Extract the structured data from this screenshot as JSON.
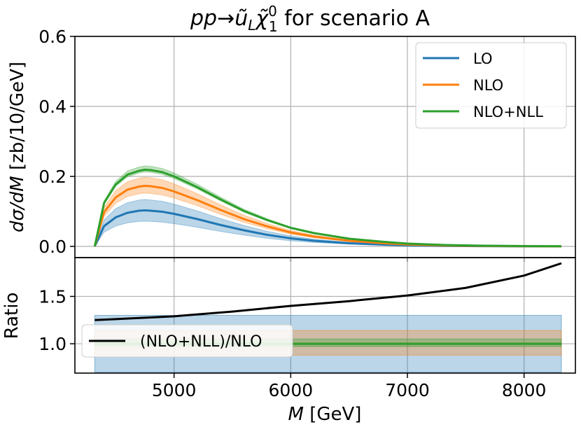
{
  "chart_data": [
    {
      "type": "line",
      "title": "pp→ũ_L χ̃₁⁰ for scenario A",
      "title_parts": {
        "pre": "pp",
        "arrow": "→",
        "u": "ũ",
        "L": "L",
        "chi": "χ̃",
        "one": "1",
        "zero": "0",
        "post": " for scenario A"
      },
      "ylabel": "dσ/dM [zb/10/GeV]",
      "ylabel_parts": {
        "d1": "d",
        "sigma": "σ",
        "slash": "/",
        "dM": "dM",
        "unit": " [zb/10/GeV]"
      },
      "xlim": [
        4150,
        8440
      ],
      "ylim": [
        -0.032,
        0.6
      ],
      "yticks": [
        "0.0",
        "0.2",
        "0.4",
        "0.6"
      ],
      "ytick_values": [
        0.0,
        0.2,
        0.4,
        0.6
      ],
      "xgrid_values": [
        5000,
        6000,
        7000,
        8000
      ],
      "legend": {
        "position": "top-right",
        "entries": [
          "LO",
          "NLO",
          "NLO+NLL"
        ]
      },
      "x": [
        4320,
        4400,
        4500,
        4600,
        4700,
        4750,
        4800,
        4900,
        5000,
        5200,
        5400,
        5600,
        5800,
        6000,
        6200,
        6500,
        6800,
        7000,
        7300,
        7600,
        8000,
        8320
      ],
      "series": [
        {
          "name": "LO",
          "color": "#1f77b4",
          "values": [
            0.0,
            0.058,
            0.083,
            0.096,
            0.102,
            0.103,
            0.102,
            0.099,
            0.093,
            0.078,
            0.061,
            0.046,
            0.033,
            0.023,
            0.016,
            0.009,
            0.005,
            0.003,
            0.0015,
            0.0008,
            0.0003,
            0.0001
          ],
          "band_upper_ratio": 1.3,
          "band_lower_ratio": 0.7
        },
        {
          "name": "NLO",
          "color": "#ff7f0e",
          "values": [
            0.0,
            0.098,
            0.14,
            0.162,
            0.171,
            0.173,
            0.172,
            0.167,
            0.157,
            0.132,
            0.104,
            0.078,
            0.057,
            0.04,
            0.028,
            0.016,
            0.009,
            0.0055,
            0.0028,
            0.0014,
            0.0006,
            0.0002
          ],
          "band_upper_ratio": 1.14,
          "band_lower_ratio": 0.88
        },
        {
          "name": "NLO+NLL",
          "color": "#2ca02c",
          "values": [
            0.0,
            0.124,
            0.177,
            0.205,
            0.216,
            0.219,
            0.218,
            0.212,
            0.2,
            0.169,
            0.134,
            0.101,
            0.075,
            0.053,
            0.038,
            0.022,
            0.013,
            0.008,
            0.0042,
            0.0022,
            0.001,
            0.0004
          ],
          "band_upper_ratio": 1.05,
          "band_lower_ratio": 0.97
        }
      ]
    },
    {
      "type": "line",
      "ylabel": "Ratio",
      "xlabel": "M [GeV]",
      "xlabel_parts": {
        "M": "M",
        "unit": " [GeV]"
      },
      "xlim": [
        4150,
        8440
      ],
      "ylim": [
        0.69,
        1.91
      ],
      "xticks": [
        "5000",
        "6000",
        "7000",
        "8000"
      ],
      "xtick_values": [
        5000,
        6000,
        7000,
        8000
      ],
      "yticks": [
        "1.0",
        "1.5"
      ],
      "ytick_values": [
        1.0,
        1.5
      ],
      "legend": {
        "position": "bottom-left",
        "entries": [
          "(NLO+NLL)/NLO"
        ]
      },
      "x": [
        4320,
        4500,
        5000,
        5500,
        6000,
        6500,
        7000,
        7500,
        8000,
        8320
      ],
      "ratio": [
        1.25,
        1.26,
        1.29,
        1.34,
        1.4,
        1.45,
        1.51,
        1.59,
        1.72,
        1.85
      ],
      "bands": [
        {
          "name": "LO",
          "color": "#1f77b4",
          "upper": 1.3,
          "lower": 0.7
        },
        {
          "name": "NLO",
          "color": "#ff7f0e",
          "upper": 1.14,
          "lower": 0.88
        },
        {
          "name": "NLO+NLL",
          "color": "#2ca02c",
          "upper": 1.05,
          "lower": 0.97
        }
      ]
    }
  ]
}
